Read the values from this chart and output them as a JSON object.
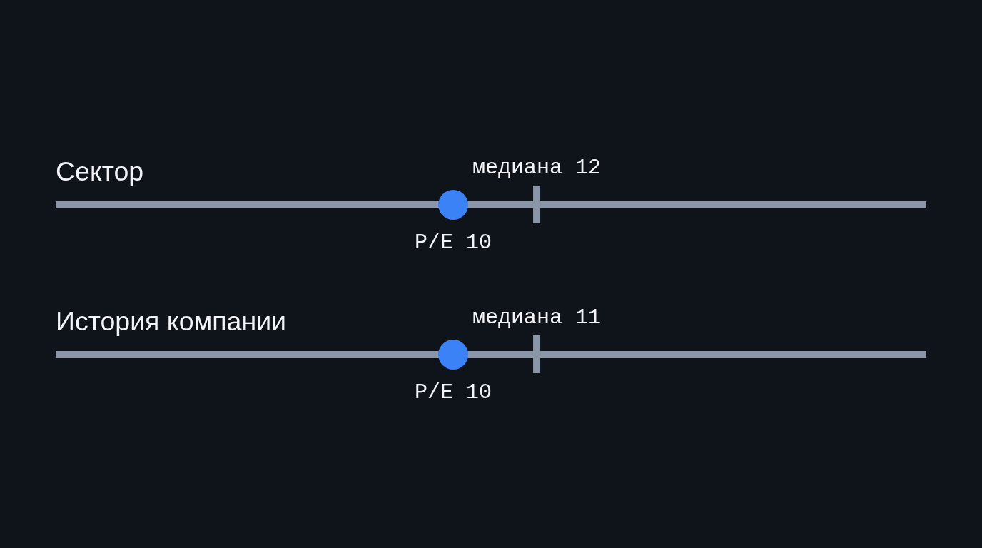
{
  "chart_data": [
    {
      "type": "other",
      "title": "Сектор",
      "series": [
        {
          "name": "P/E",
          "color": "#3b82f6",
          "values": [
            10
          ]
        },
        {
          "name": "медиана",
          "values": [
            12
          ]
        }
      ],
      "data_labels": true
    },
    {
      "type": "other",
      "title": "История компании",
      "series": [
        {
          "name": "P/E",
          "color": "#3b82f6",
          "values": [
            10
          ]
        },
        {
          "name": "медиана",
          "values": [
            11
          ]
        }
      ],
      "data_labels": true
    }
  ]
}
